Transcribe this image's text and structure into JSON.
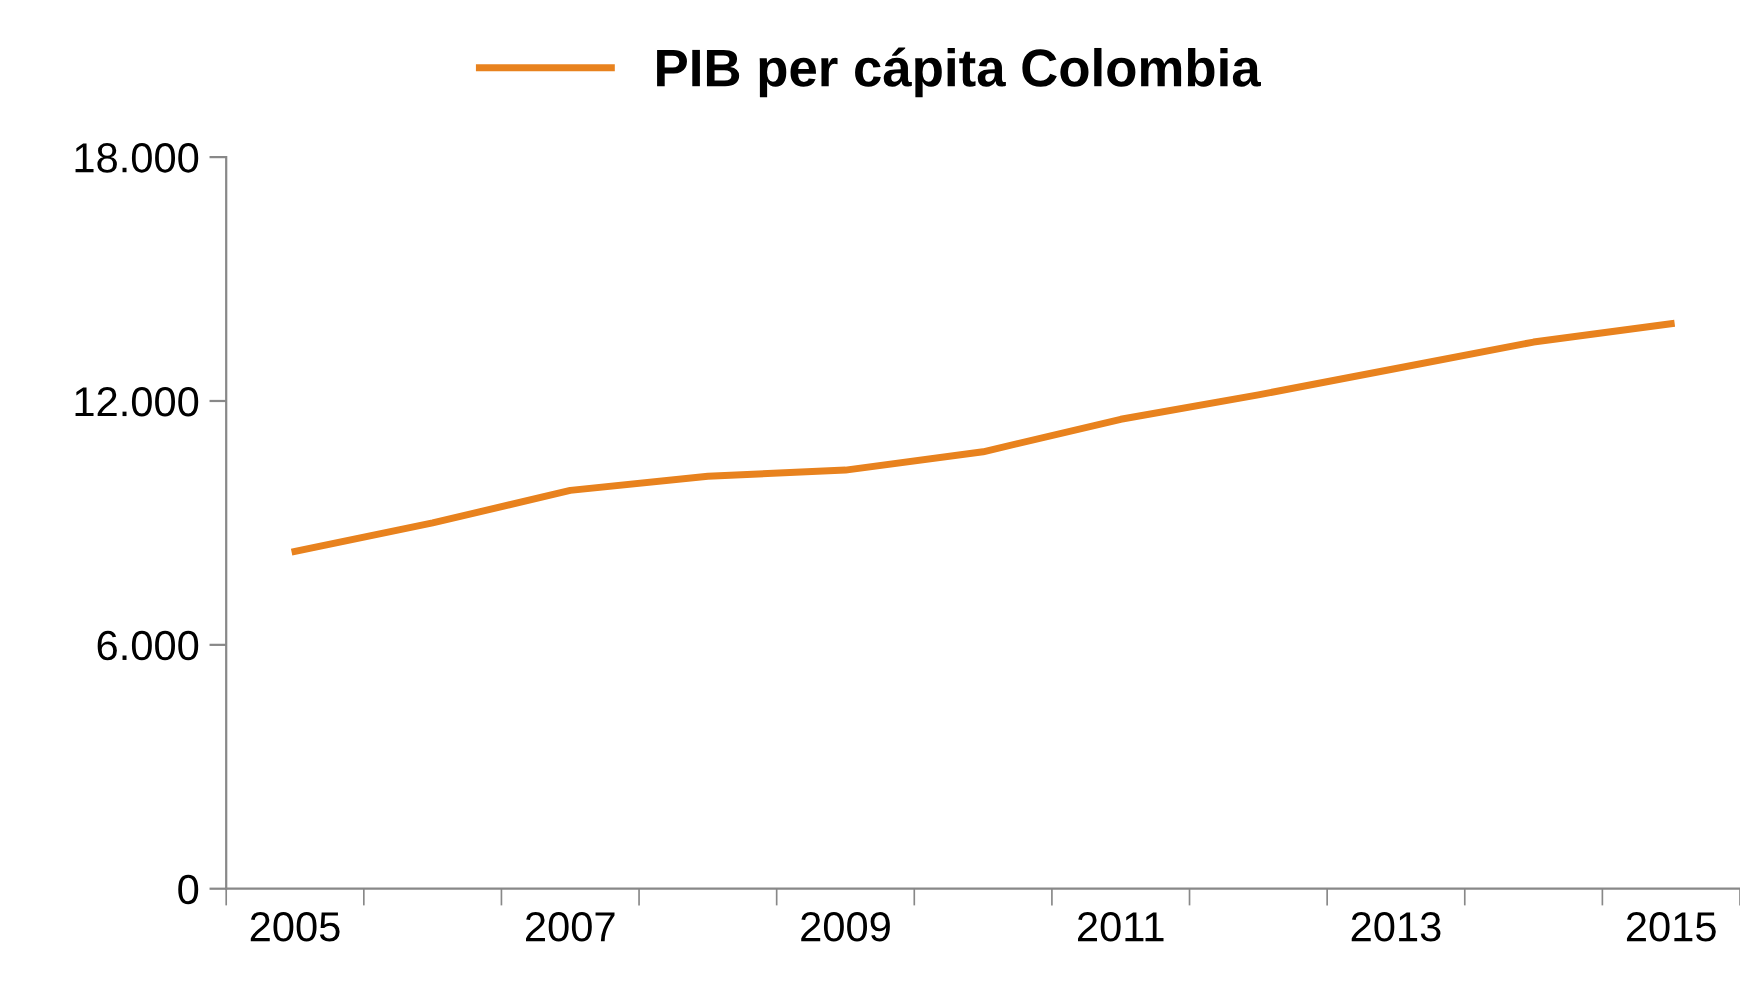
{
  "chart_data": {
    "type": "line",
    "categories": [
      "2005",
      null,
      "2007",
      null,
      "2009",
      null,
      "2011",
      null,
      "2013",
      null,
      "2015"
    ],
    "series": [
      {
        "name": "PIB per cápita Colombia",
        "color": "#e8821e",
        "values": [
          8300,
          9000,
          9800,
          10150,
          10300,
          10750,
          11550,
          12150,
          12800,
          13450,
          13900
        ]
      }
    ],
    "ylim": [
      0,
      18000
    ],
    "yticks": [
      {
        "value": 0,
        "label": "0"
      },
      {
        "value": 6000,
        "label": "6.000"
      },
      {
        "value": 12000,
        "label": "12.000"
      },
      {
        "value": 18000,
        "label": "18.000"
      }
    ],
    "grid": false,
    "legend": "top",
    "marker": "none",
    "line_style": "solid"
  }
}
